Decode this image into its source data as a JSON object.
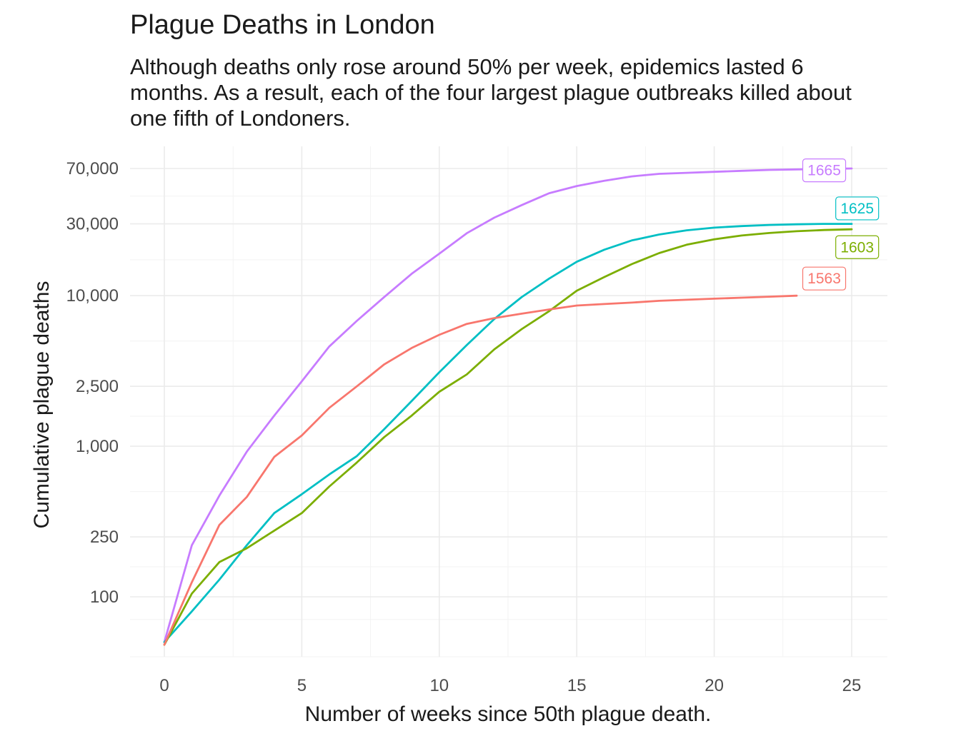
{
  "chart_data": {
    "type": "line",
    "title": "Plague Deaths in London",
    "subtitle": "Although deaths only rose around 50% per week, epidemics lasted 6 months. As a result, each of the four largest plague outbreaks killed about one fifth of Londoners.",
    "xlabel": "Number of weeks since 50th plague death.",
    "ylabel": "Cumulative plague deaths",
    "y_scale": "log",
    "xlim": [
      0,
      25
    ],
    "ylim": [
      50,
      70000
    ],
    "x_ticks": [
      0,
      5,
      10,
      15,
      20,
      25
    ],
    "x_tick_labels": [
      "0",
      "5",
      "10",
      "15",
      "20",
      "25"
    ],
    "y_ticks": [
      100,
      250,
      1000,
      2500,
      10000,
      30000,
      70000
    ],
    "y_tick_labels": [
      "100",
      "250",
      "1,000",
      "2,500",
      "10,000",
      "30,000",
      "70,000"
    ],
    "grid": true,
    "legend": "none",
    "series": [
      {
        "name": "1665",
        "color": "#C77CFF",
        "x": [
          0,
          1,
          2,
          3,
          4,
          5,
          6,
          7,
          8,
          9,
          10,
          11,
          12,
          13,
          14,
          15,
          16,
          17,
          18,
          19,
          20,
          21,
          22,
          23,
          24,
          25
        ],
        "y": [
          50,
          220,
          470,
          920,
          1600,
          2700,
          4600,
          6800,
          9800,
          14000,
          19000,
          26000,
          33000,
          40000,
          48000,
          53500,
          58000,
          62000,
          64500,
          65500,
          66500,
          67500,
          68500,
          69000,
          69500,
          70000
        ]
      },
      {
        "name": "1625",
        "color": "#00BFC4",
        "x": [
          0,
          1,
          2,
          3,
          4,
          5,
          6,
          7,
          8,
          9,
          10,
          11,
          12,
          13,
          14,
          15,
          16,
          17,
          18,
          19,
          20,
          21,
          22,
          23,
          24,
          25
        ],
        "y": [
          50,
          80,
          130,
          220,
          360,
          480,
          650,
          860,
          1300,
          2000,
          3100,
          4700,
          7000,
          9800,
          13000,
          16800,
          20200,
          23300,
          25500,
          27200,
          28300,
          29000,
          29500,
          29800,
          30000,
          30000
        ]
      },
      {
        "name": "1603",
        "color": "#7CAE00",
        "x": [
          0,
          1,
          2,
          3,
          4,
          5,
          6,
          7,
          8,
          9,
          10,
          11,
          12,
          13,
          14,
          15,
          16,
          17,
          18,
          19,
          20,
          21,
          22,
          23,
          24,
          25
        ],
        "y": [
          48,
          105,
          170,
          210,
          275,
          360,
          540,
          780,
          1150,
          1600,
          2300,
          3000,
          4400,
          6000,
          7900,
          10800,
          13300,
          16200,
          19200,
          21800,
          23700,
          25100,
          26100,
          26800,
          27300,
          27600
        ]
      },
      {
        "name": "1563",
        "color": "#F8766D",
        "x": [
          0,
          1,
          2,
          3,
          4,
          5,
          6,
          7,
          8,
          9,
          10,
          11,
          12,
          13,
          14,
          15,
          16,
          17,
          18,
          19,
          20,
          21,
          22,
          23
        ],
        "y": [
          48,
          125,
          300,
          460,
          850,
          1180,
          1800,
          2500,
          3500,
          4500,
          5500,
          6500,
          7100,
          7600,
          8100,
          8600,
          8800,
          9000,
          9250,
          9400,
          9550,
          9700,
          9850,
          10000
        ]
      }
    ],
    "labels": [
      {
        "text": "1665",
        "color": "#C77CFF",
        "x": 24,
        "y": 68000
      },
      {
        "text": "1625",
        "color": "#00BFC4",
        "x": 25.2,
        "y": 38000
      },
      {
        "text": "1603",
        "color": "#7CAE00",
        "x": 25.2,
        "y": 21000
      },
      {
        "text": "1563",
        "color": "#F8766D",
        "x": 24,
        "y": 13000
      }
    ]
  }
}
